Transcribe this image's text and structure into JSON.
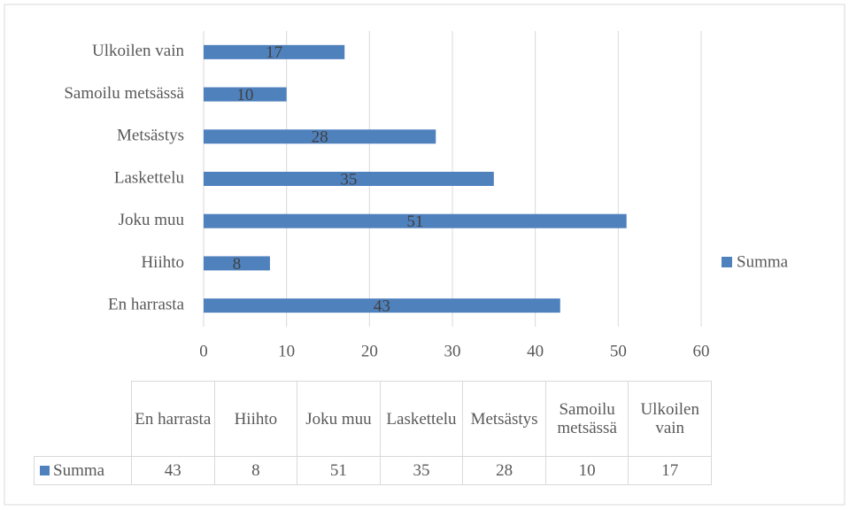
{
  "chart_data": {
    "type": "bar",
    "orientation": "horizontal",
    "categories": [
      "En harrasta",
      "Hiihto",
      "Joku muu",
      "Laskettelu",
      "Metsästys",
      "Samoilu metsässä",
      "Ulkoilen vain"
    ],
    "series": [
      {
        "name": "Summa",
        "color": "#4f81bd",
        "values": [
          43,
          8,
          51,
          35,
          28,
          10,
          17
        ]
      }
    ],
    "xlim": [
      0,
      60
    ],
    "xticks": [
      0,
      10,
      20,
      30,
      40,
      50,
      60
    ],
    "grid": true,
    "legend": "right",
    "data_table": true
  }
}
